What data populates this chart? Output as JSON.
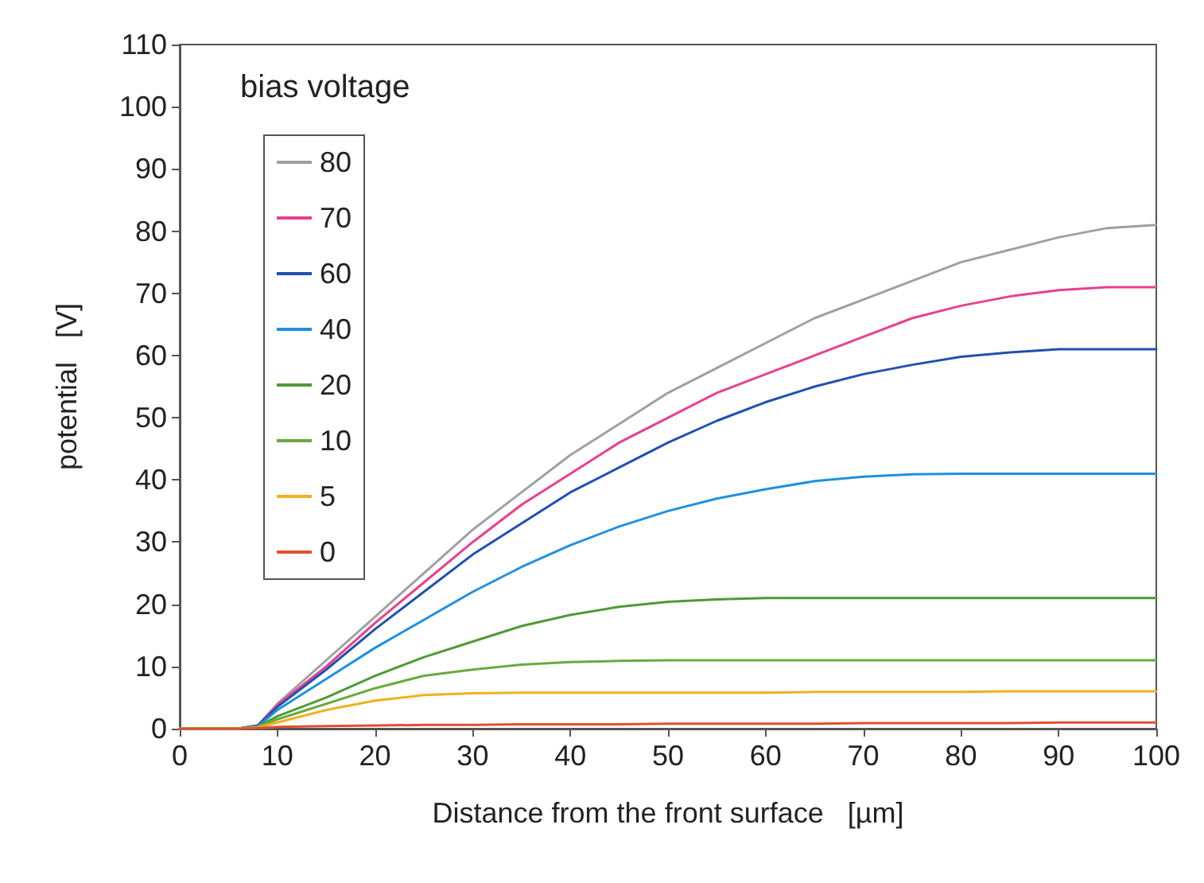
{
  "chart_data": {
    "type": "line",
    "xlabel": "Distance from the front surface   [µm]",
    "ylabel": "potential   [V]",
    "legend_title": "bias voltage",
    "legend": "top left",
    "grid": false,
    "marker": "none",
    "line_style": "solid",
    "x": [
      0,
      6,
      8,
      10,
      15,
      20,
      25,
      30,
      35,
      40,
      45,
      50,
      55,
      60,
      65,
      70,
      75,
      80,
      85,
      90,
      95,
      100
    ],
    "xlim": [
      0,
      100
    ],
    "xticks": [
      0,
      10,
      20,
      30,
      40,
      50,
      60,
      70,
      80,
      90,
      100
    ],
    "ylim": [
      0,
      110
    ],
    "yticks": [
      0,
      10,
      20,
      30,
      40,
      50,
      60,
      70,
      80,
      90,
      100,
      110
    ],
    "series": [
      {
        "name": "80",
        "color": "#a0a0a0",
        "values": [
          0,
          0,
          0.5,
          4,
          11,
          18,
          25,
          32,
          38,
          44,
          49,
          54,
          58,
          62,
          66,
          69,
          72,
          75,
          77,
          79,
          80.5,
          81
        ]
      },
      {
        "name": "70",
        "color": "#e8408f",
        "values": [
          0,
          0,
          0.5,
          3.8,
          10,
          17,
          23.5,
          30,
          36,
          41,
          46,
          50,
          54,
          57,
          60,
          63,
          66,
          68,
          69.5,
          70.5,
          71,
          71
        ]
      },
      {
        "name": "60",
        "color": "#2050b0",
        "values": [
          0,
          0,
          0.5,
          3.5,
          9.5,
          16,
          22,
          28,
          33,
          38,
          42,
          46,
          49.5,
          52.5,
          55,
          57,
          58.5,
          59.8,
          60.5,
          61,
          61,
          61
        ]
      },
      {
        "name": "40",
        "color": "#2090e0",
        "values": [
          0,
          0,
          0.4,
          3,
          8,
          13,
          17.5,
          22,
          26,
          29.5,
          32.5,
          35,
          37,
          38.5,
          39.8,
          40.5,
          40.9,
          41,
          41,
          41,
          41,
          41
        ]
      },
      {
        "name": "20",
        "color": "#4e9a36",
        "values": [
          0,
          0,
          0.3,
          2,
          5,
          8.5,
          11.5,
          14,
          16.5,
          18.3,
          19.6,
          20.4,
          20.8,
          21,
          21,
          21,
          21,
          21,
          21,
          21,
          21,
          21
        ]
      },
      {
        "name": "10",
        "color": "#6aaa40",
        "values": [
          0,
          0,
          0.3,
          1.5,
          4,
          6.5,
          8.5,
          9.5,
          10.3,
          10.7,
          10.9,
          11,
          11,
          11,
          11,
          11,
          11,
          11,
          11,
          11,
          11,
          11
        ]
      },
      {
        "name": "5",
        "color": "#f0b020",
        "values": [
          0,
          0,
          0.2,
          1,
          3,
          4.5,
          5.4,
          5.7,
          5.8,
          5.8,
          5.8,
          5.8,
          5.8,
          5.8,
          5.9,
          5.9,
          5.9,
          5.9,
          6,
          6,
          6,
          6
        ]
      },
      {
        "name": "0",
        "color": "#e05030",
        "values": [
          0,
          0,
          0.1,
          0.3,
          0.4,
          0.5,
          0.6,
          0.6,
          0.7,
          0.7,
          0.7,
          0.8,
          0.8,
          0.8,
          0.8,
          0.9,
          0.9,
          0.9,
          0.9,
          1,
          1,
          1
        ]
      }
    ]
  }
}
